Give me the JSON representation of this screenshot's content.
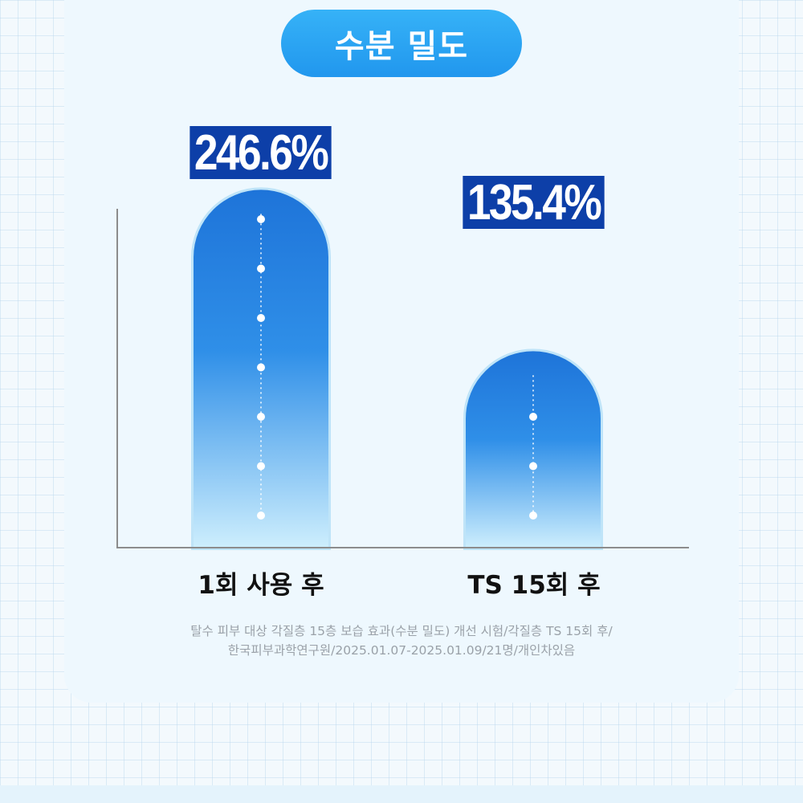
{
  "title": "수분 밀도",
  "chart_data": {
    "type": "bar",
    "categories": [
      "1회 사용 후",
      "TS 15회 후"
    ],
    "values": [
      246.6,
      135.4
    ],
    "value_labels": [
      "246.6%",
      "135.4%"
    ],
    "ylim": [
      0,
      290
    ],
    "grid": false,
    "xlabel": "",
    "ylabel": ""
  },
  "footnote": {
    "line1": "탈수 피부 대상 각질층 15층 보습 효과(수분 밀도) 개선 시험/각질층 TS 15회 후/",
    "line2": "한국피부과학연구원/2025.01.07-2025.01.09/21명/개인차있음"
  },
  "colors": {
    "accent": "#2197ee",
    "label_bg": "#0d3fa8",
    "bar_top": "#1e74d9",
    "bar_mid": "#2f8fe8",
    "bar_bottom": "#cdeefd"
  }
}
